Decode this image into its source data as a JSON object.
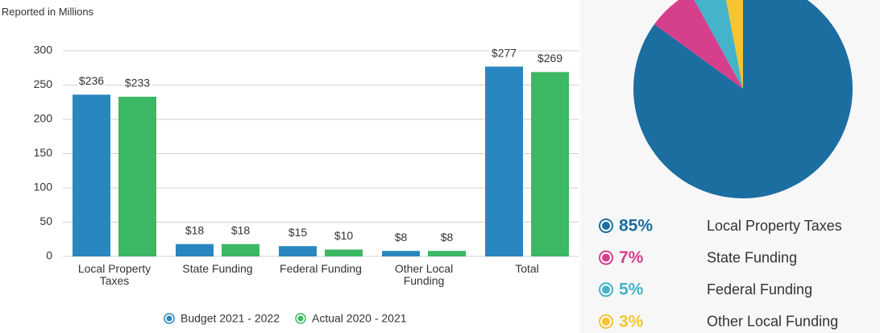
{
  "chart_data": [
    {
      "type": "bar",
      "y_label": "Reported in Millions",
      "categories": [
        "Local Property Taxes",
        "State Funding",
        "Federal Funding",
        "Other Local Funding",
        "Total"
      ],
      "series": [
        {
          "name": "Budget 2021 - 2022",
          "color": "#2a86bf",
          "values": [
            236,
            18,
            15,
            8,
            277
          ],
          "value_labels": [
            "$236",
            "$18",
            "$15",
            "$8",
            "$277"
          ]
        },
        {
          "name": "Actual 2020 - 2021",
          "color": "#3cb763",
          "values": [
            233,
            18,
            10,
            8,
            269
          ],
          "value_labels": [
            "$233",
            "$18",
            "$10",
            "$8",
            "$269"
          ]
        }
      ],
      "ylim": [
        0,
        300
      ],
      "yticks": [
        0,
        50,
        100,
        150,
        200,
        250,
        300
      ],
      "grid": true,
      "legend": "bottom"
    },
    {
      "type": "pie",
      "categories": [
        "Local Property Taxes",
        "State Funding",
        "Federal Funding",
        "Other Local Funding"
      ],
      "values": [
        85,
        7,
        5,
        3
      ],
      "value_labels": [
        "85%",
        "7%",
        "5%",
        "3%"
      ],
      "colors": [
        "#1c6ea0",
        "#d63f8c",
        "#45b3c9",
        "#f5c431"
      ],
      "legend": "bottom"
    }
  ]
}
